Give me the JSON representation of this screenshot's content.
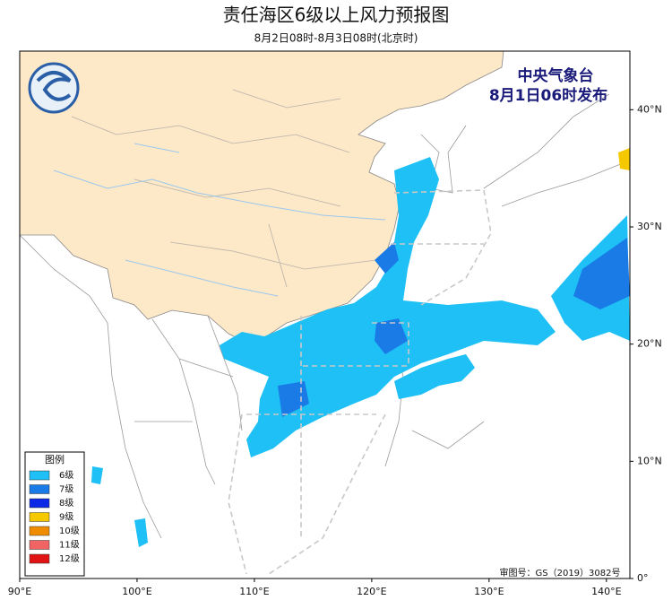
{
  "header": {
    "title": "责任海区6级以上风力预报图",
    "subtitle": "8月2日08时-8月3日08时(北京时)"
  },
  "issuer": {
    "agency": "中央气象台",
    "issued": "8月1日06时发布"
  },
  "map": {
    "xlim": [
      90,
      142
    ],
    "ylim": [
      0,
      45
    ],
    "xticks": [
      {
        "value": 90,
        "label": "90°E"
      },
      {
        "value": 100,
        "label": "100°E"
      },
      {
        "value": 110,
        "label": "110°E"
      },
      {
        "value": 120,
        "label": "120°E"
      },
      {
        "value": 130,
        "label": "130°E"
      },
      {
        "value": 140,
        "label": "140°E"
      }
    ],
    "yticks": [
      {
        "value": 0,
        "label": "0°"
      },
      {
        "value": 10,
        "label": "10°N"
      },
      {
        "value": 20,
        "label": "20°N"
      },
      {
        "value": 30,
        "label": "30°N"
      },
      {
        "value": 40,
        "label": "40°N"
      }
    ]
  },
  "legend": {
    "title": "图例",
    "items": [
      {
        "label": "6级",
        "color": "#1ec0f5"
      },
      {
        "label": "7级",
        "color": "#1a7ae6"
      },
      {
        "label": "8级",
        "color": "#0a28e6"
      },
      {
        "label": "9级",
        "color": "#f5c800"
      },
      {
        "label": "10级",
        "color": "#f08c00"
      },
      {
        "label": "11级",
        "color": "#f06464"
      },
      {
        "label": "12级",
        "color": "#e01414"
      }
    ]
  },
  "footer": {
    "approval": "审图号：GS（2019）3082号"
  }
}
